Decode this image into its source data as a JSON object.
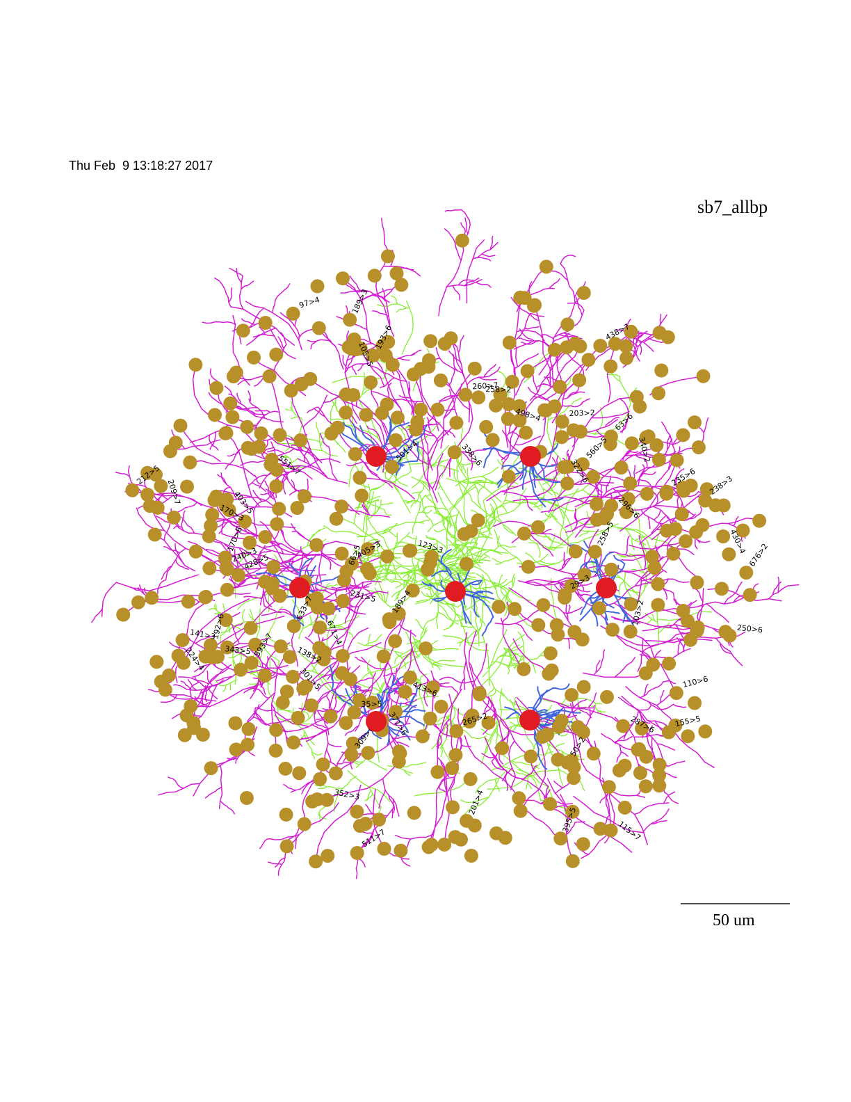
{
  "timestamp": "Thu Feb  9 13:18:27 2017",
  "title": "sb7_allbp",
  "scale_bar": {
    "label": "50 um"
  },
  "colors": {
    "background": "#ffffff",
    "soma_large": "#e01b22",
    "terminal_dot": "#b8902a",
    "dendrite_magenta": "#d21ed2",
    "dendrite_green": "#88ee33",
    "dendrite_blue": "#4466dd",
    "label_text": "#000000"
  },
  "somata": [
    {
      "id": "soma-1"
    },
    {
      "id": "soma-2"
    },
    {
      "id": "soma-3"
    },
    {
      "id": "soma-4"
    },
    {
      "id": "soma-5"
    },
    {
      "id": "soma-6"
    },
    {
      "id": "soma-7"
    }
  ],
  "node_labels": [
    "322>6",
    "309>6",
    "371>6",
    "296>6",
    "338>6",
    "110>6",
    "287>6",
    "250>6",
    "193>6",
    "192>6",
    "235>6",
    "413>6",
    "63>6",
    "115>7",
    "438>7",
    "593>7",
    "551>7",
    "511>7",
    "633>7",
    "260>7",
    "212>5",
    "301>5",
    "395>5",
    "343>5",
    "231>5",
    "428>5",
    "35>5",
    "66>5",
    "155>5",
    "258>5",
    "170>6",
    "105>5",
    "403>5",
    "50>2",
    "238>3",
    "265>2",
    "203>2",
    "103>2",
    "209>7",
    "97>4",
    "240>3",
    "560>5",
    "430>4",
    "501>4",
    "224>4",
    "498>4",
    "671>4",
    "189>4",
    "201>4",
    "189>3",
    "170>3",
    "352>3",
    "123>3",
    "141>3",
    "138>2",
    "676>2",
    "340>2",
    "258>2",
    "405>3",
    "29>3"
  ]
}
